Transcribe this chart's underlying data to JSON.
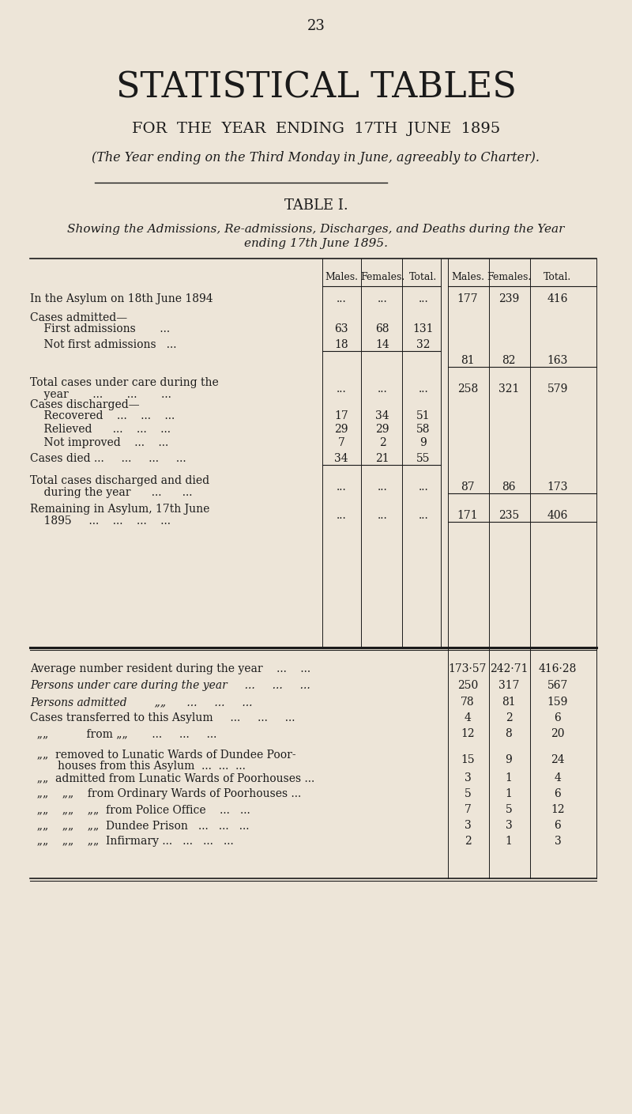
{
  "page_number": "23",
  "main_title": "STATISTICAL TABLES",
  "subtitle1": "FOR  THE  YEAR  ENDING  17TH  JUNE  1895",
  "subtitle2": "(The Year ending on the Third Monday in June, agreeably to Charter).",
  "table_title": "TABLE I.",
  "table_subtitle_line1": "Showing the Admissions, Re-admissions, Discharges, and Deaths during the Year",
  "table_subtitle_line2": "ending 17th June 1895.",
  "col_headers": [
    "Males.",
    "Females.",
    "Total.",
    "Males.",
    "Females.",
    "Total."
  ],
  "bg_color": "#ede5d8",
  "text_color": "#1a1a1a",
  "rows": [
    {
      "label": "In the Asylum on 18th June 1894",
      "label2": "",
      "indent": 0,
      "left_cols": [
        "...",
        "...",
        "..."
      ],
      "right_cols": [
        "177",
        "239",
        "416"
      ],
      "left_line_below": false,
      "right_line_below": false
    },
    {
      "label": "Cases admitted—",
      "label2": "",
      "indent": 0,
      "left_cols": [
        "",
        "",
        ""
      ],
      "right_cols": [
        "",
        "",
        ""
      ],
      "left_line_below": false,
      "right_line_below": false
    },
    {
      "label": "    First admissions       ...",
      "label2": "",
      "indent": 1,
      "left_cols": [
        "63",
        "68",
        "131"
      ],
      "right_cols": [
        "",
        "",
        ""
      ],
      "left_line_below": false,
      "right_line_below": false
    },
    {
      "label": "    Not first admissions   ...",
      "label2": "",
      "indent": 1,
      "left_cols": [
        "18",
        "14",
        "32"
      ],
      "right_cols": [
        "",
        "",
        ""
      ],
      "left_line_below": true,
      "right_line_below": false
    },
    {
      "label": "",
      "label2": "",
      "indent": 0,
      "left_cols": [
        "",
        "",
        ""
      ],
      "right_cols": [
        "81",
        "82",
        "163"
      ],
      "left_line_below": false,
      "right_line_below": true
    },
    {
      "label": "Total cases under care during the",
      "label2": "    year       ...       ...       ...",
      "indent": 0,
      "left_cols": [
        "...",
        "...",
        "..."
      ],
      "right_cols": [
        "258",
        "321",
        "579"
      ],
      "left_line_below": false,
      "right_line_below": false
    },
    {
      "label": "Cases discharged—",
      "label2": "",
      "indent": 0,
      "left_cols": [
        "",
        "",
        ""
      ],
      "right_cols": [
        "",
        "",
        ""
      ],
      "left_line_below": false,
      "right_line_below": false
    },
    {
      "label": "    Recovered    ...    ...    ...",
      "label2": "",
      "indent": 1,
      "left_cols": [
        "17",
        "34",
        "51"
      ],
      "right_cols": [
        "",
        "",
        ""
      ],
      "left_line_below": false,
      "right_line_below": false
    },
    {
      "label": "    Relieved      ...    ...    ...",
      "label2": "",
      "indent": 1,
      "left_cols": [
        "29",
        "29",
        "58"
      ],
      "right_cols": [
        "",
        "",
        ""
      ],
      "left_line_below": false,
      "right_line_below": false
    },
    {
      "label": "    Not improved    ...    ...",
      "label2": "",
      "indent": 1,
      "left_cols": [
        "7",
        "2",
        "9"
      ],
      "right_cols": [
        "",
        "",
        ""
      ],
      "left_line_below": false,
      "right_line_below": false
    },
    {
      "label": "Cases died ...     ...     ...     ...",
      "label2": "",
      "indent": 0,
      "left_cols": [
        "34",
        "21",
        "55"
      ],
      "right_cols": [
        "",
        "",
        ""
      ],
      "left_line_below": true,
      "right_line_below": false
    },
    {
      "label": "Total cases discharged and died",
      "label2": "    during the year      ...      ...",
      "indent": 0,
      "left_cols": [
        "...",
        "...",
        "..."
      ],
      "right_cols": [
        "87",
        "86",
        "173"
      ],
      "left_line_below": false,
      "right_line_below": true
    },
    {
      "label": "Remaining in Asylum, 17th June",
      "label2": "    1895     ...    ...    ...    ...",
      "indent": 0,
      "left_cols": [
        "...",
        "...",
        "..."
      ],
      "right_cols": [
        "171",
        "235",
        "406"
      ],
      "left_line_below": false,
      "right_line_below": true
    }
  ],
  "bottom_rows": [
    {
      "label": "Average number resident during the year    ...    ...",
      "label2": "",
      "italic": false,
      "cols": [
        "173·57",
        "242·71",
        "416·28"
      ]
    },
    {
      "label": "Persons under care during the year     ...     ...     ...",
      "label2": "",
      "italic": true,
      "cols": [
        "250",
        "317",
        "567"
      ]
    },
    {
      "label": "Persons admitted        „„      ...     ...     ...",
      "label2": "",
      "italic": true,
      "cols": [
        "78",
        "81",
        "159"
      ]
    },
    {
      "label": "Cases transferred to this Asylum     ...     ...     ...",
      "label2": "",
      "italic": false,
      "cols": [
        "4",
        "2",
        "6"
      ]
    },
    {
      "label": "  „„           from „„       ...     ...     ...",
      "label2": "",
      "italic": false,
      "cols": [
        "12",
        "8",
        "20"
      ]
    },
    {
      "label": "  „„  removed to Lunatic Wards of Dundee Poor-",
      "label2": "        houses from this Asylum  ...  ...  ...",
      "italic": false,
      "cols": [
        "15",
        "9",
        "24"
      ]
    },
    {
      "label": "  „„  admitted from Lunatic Wards of Poorhouses ...",
      "label2": "",
      "italic": false,
      "cols": [
        "3",
        "1",
        "4"
      ]
    },
    {
      "label": "  „„    „„    from Ordinary Wards of Poorhouses ...",
      "label2": "",
      "italic": false,
      "cols": [
        "5",
        "1",
        "6"
      ]
    },
    {
      "label": "  „„    „„    „„  from Police Office    ...   ...",
      "label2": "",
      "italic": false,
      "cols": [
        "7",
        "5",
        "12"
      ]
    },
    {
      "label": "  „„    „„    „„  Dundee Prison   ...   ...   ...",
      "label2": "",
      "italic": false,
      "cols": [
        "3",
        "3",
        "6"
      ]
    },
    {
      "label": "  „„    „„    „„  Infirmary ...   ...   ...   ...",
      "label2": "",
      "italic": false,
      "cols": [
        "2",
        "1",
        "3"
      ]
    }
  ]
}
